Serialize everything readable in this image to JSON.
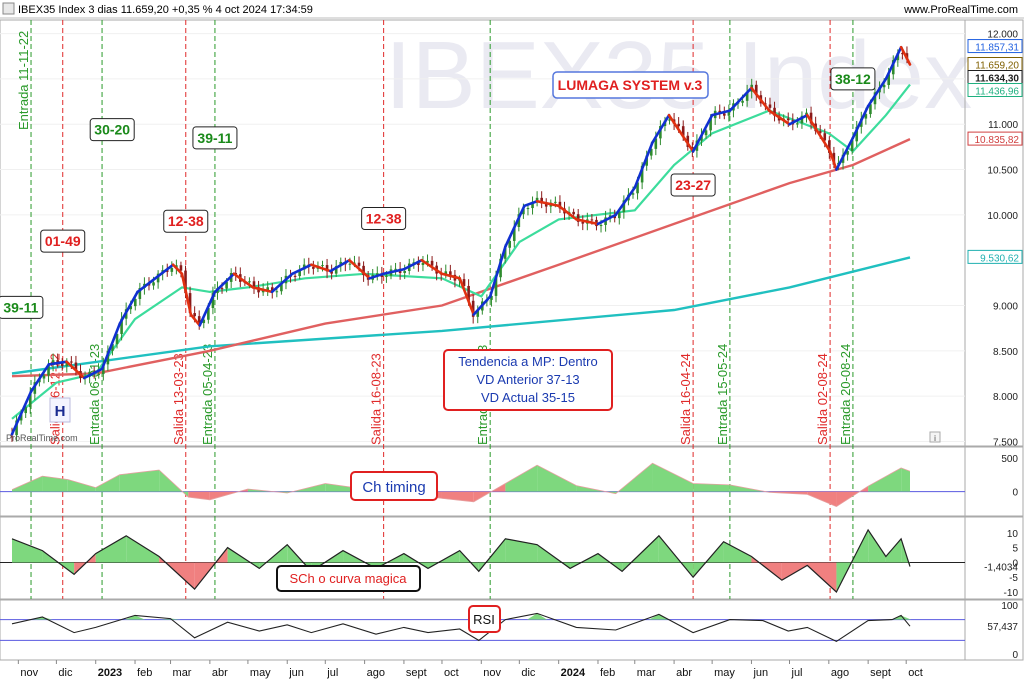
{
  "header": {
    "title": "IBEX35 Index 3 dias 11.659,20 +0,35 % 4 oct 2024 17:34:59",
    "site": "www.ProRealTime.com",
    "watermark": "IBEX35 Index",
    "credit": "ProRealTime.com"
  },
  "colors": {
    "up_candle": "#2e8b2e",
    "down_candle": "#8b1a1a",
    "trend_up": "#1030d0",
    "trend_down": "#e03010",
    "fast_ma": "#3cdc9c",
    "slow_ma": "#e06060",
    "long_ma": "#20c0c0",
    "entry_line": "#2a9a2a",
    "exit_line": "#e02a2a",
    "hist_pos": "#7ed87e",
    "hist_neg": "#f08080",
    "ref_line": "#5a5ae0"
  },
  "labels": {
    "system_title": "LUMAGA SYSTEM v.3",
    "info_box": [
      "Tendencia a MP: Dentro",
      "VD Anterior 37-13",
      "VD Actual 35-15"
    ],
    "panel1_label": "Ch timing",
    "panel2_label": "SCh o curva magica",
    "panel3_label": "RSI",
    "h_marker": "H"
  },
  "chart_data": {
    "type": "candlestick",
    "x_axis": {
      "labels": [
        "nov",
        "dic",
        "2023",
        "feb",
        "mar",
        "abr",
        "may",
        "jun",
        "jul",
        "ago",
        "sept",
        "oct",
        "nov",
        "dic",
        "2024",
        "feb",
        "mar",
        "abr",
        "may",
        "jun",
        "jul",
        "ago",
        "sept",
        "oct"
      ],
      "range": [
        "2022-10-27",
        "2024-10-04"
      ]
    },
    "price_axis": {
      "ylim": [
        7450,
        12150
      ],
      "ticks": [
        "12.000",
        "11.500",
        "11.000",
        "10.500",
        "10.000",
        "9.000",
        "8.500",
        "8.000",
        "7.500"
      ],
      "tick_values": [
        12000,
        11500,
        11000,
        10500,
        10000,
        9000,
        8500,
        8000,
        7500
      ],
      "price_tags": [
        {
          "text": "11.857,31",
          "value": 11857,
          "color": "#2060e0"
        },
        {
          "text": "11.659,20",
          "value": 11659,
          "color": "#806000"
        },
        {
          "text": "11.634,30",
          "value": 11634,
          "color": "#202020"
        },
        {
          "text": "11.436,96",
          "value": 11437,
          "color": "#20b080"
        },
        {
          "text": "10.835,82",
          "value": 10836,
          "color": "#d04040"
        },
        {
          "text": "9.530,62",
          "value": 9531,
          "color": "#20b0b0"
        }
      ]
    },
    "price_path": [
      [
        "2022-10-27",
        7580
      ],
      [
        "2022-11-11",
        8050
      ],
      [
        "2022-11-25",
        8350
      ],
      [
        "2022-12-09",
        8380
      ],
      [
        "2022-12-23",
        8200
      ],
      [
        "2023-01-06",
        8300
      ],
      [
        "2023-01-20",
        8800
      ],
      [
        "2023-02-03",
        9150
      ],
      [
        "2023-02-17",
        9300
      ],
      [
        "2023-03-03",
        9450
      ],
      [
        "2023-03-10",
        9350
      ],
      [
        "2023-03-17",
        8900
      ],
      [
        "2023-03-24",
        8780
      ],
      [
        "2023-04-05",
        9150
      ],
      [
        "2023-04-20",
        9350
      ],
      [
        "2023-05-05",
        9200
      ],
      [
        "2023-05-20",
        9150
      ],
      [
        "2023-06-05",
        9350
      ],
      [
        "2023-06-20",
        9450
      ],
      [
        "2023-07-05",
        9380
      ],
      [
        "2023-07-20",
        9500
      ],
      [
        "2023-08-05",
        9300
      ],
      [
        "2023-08-16",
        9350
      ],
      [
        "2023-09-01",
        9400
      ],
      [
        "2023-09-15",
        9500
      ],
      [
        "2023-10-01",
        9350
      ],
      [
        "2023-10-15",
        9300
      ],
      [
        "2023-10-26",
        8900
      ],
      [
        "2023-11-08",
        9100
      ],
      [
        "2023-11-20",
        9650
      ],
      [
        "2023-12-05",
        10100
      ],
      [
        "2023-12-15",
        10150
      ],
      [
        "2024-01-01",
        10100
      ],
      [
        "2024-01-15",
        9950
      ],
      [
        "2024-02-01",
        9900
      ],
      [
        "2024-02-15",
        10000
      ],
      [
        "2024-03-01",
        10300
      ],
      [
        "2024-03-15",
        10800
      ],
      [
        "2024-03-28",
        11100
      ],
      [
        "2024-04-16",
        10700
      ],
      [
        "2024-05-01",
        11100
      ],
      [
        "2024-05-15",
        11150
      ],
      [
        "2024-06-01",
        11400
      ],
      [
        "2024-06-15",
        11150
      ],
      [
        "2024-07-01",
        11000
      ],
      [
        "2024-07-15",
        11100
      ],
      [
        "2024-08-02",
        10700
      ],
      [
        "2024-08-07",
        10500
      ],
      [
        "2024-08-20",
        10850
      ],
      [
        "2024-09-01",
        11200
      ],
      [
        "2024-09-15",
        11500
      ],
      [
        "2024-09-27",
        11850
      ],
      [
        "2024-10-04",
        11659
      ]
    ],
    "ma_fast": [
      [
        "2022-10-27",
        7750
      ],
      [
        "2022-12-01",
        8150
      ],
      [
        "2023-01-01",
        8250
      ],
      [
        "2023-02-01",
        8850
      ],
      [
        "2023-03-10",
        9200
      ],
      [
        "2023-04-01",
        9150
      ],
      [
        "2023-05-01",
        9200
      ],
      [
        "2023-06-15",
        9300
      ],
      [
        "2023-08-01",
        9350
      ],
      [
        "2023-10-01",
        9300
      ],
      [
        "2023-11-01",
        9100
      ],
      [
        "2023-12-01",
        9700
      ],
      [
        "2024-01-01",
        9950
      ],
      [
        "2024-03-01",
        10050
      ],
      [
        "2024-04-01",
        10550
      ],
      [
        "2024-05-01",
        10900
      ],
      [
        "2024-06-15",
        11150
      ],
      [
        "2024-08-01",
        10900
      ],
      [
        "2024-08-20",
        10700
      ],
      [
        "2024-09-15",
        11100
      ],
      [
        "2024-10-04",
        11437
      ]
    ],
    "ma_slow": [
      [
        "2022-10-27",
        8220
      ],
      [
        "2023-01-01",
        8250
      ],
      [
        "2023-04-01",
        8500
      ],
      [
        "2023-07-01",
        8800
      ],
      [
        "2023-10-01",
        9000
      ],
      [
        "2024-01-01",
        9450
      ],
      [
        "2024-04-01",
        9900
      ],
      [
        "2024-07-01",
        10350
      ],
      [
        "2024-08-20",
        10550
      ],
      [
        "2024-10-04",
        10836
      ]
    ],
    "ma_long": [
      [
        "2022-10-27",
        8250
      ],
      [
        "2023-04-01",
        8550
      ],
      [
        "2023-10-01",
        8720
      ],
      [
        "2024-04-01",
        8950
      ],
      [
        "2024-07-01",
        9200
      ],
      [
        "2024-10-04",
        9531
      ]
    ],
    "signals": [
      {
        "kind": "entry",
        "label": "Entrada 11-11-22",
        "date": "2022-11-11"
      },
      {
        "kind": "exit",
        "label": "Salida 06-12-22",
        "date": "2022-12-06"
      },
      {
        "kind": "entry",
        "label": "Entrada 06-01-23",
        "date": "2023-01-06"
      },
      {
        "kind": "exit",
        "label": "Salida 13-03-23",
        "date": "2023-03-13"
      },
      {
        "kind": "entry",
        "label": "Entrada 05-04-23",
        "date": "2023-04-05"
      },
      {
        "kind": "exit",
        "label": "Salida 16-08-23",
        "date": "2023-08-16"
      },
      {
        "kind": "entry",
        "label": "Entrada 08-11-23",
        "date": "2023-11-08"
      },
      {
        "kind": "exit",
        "label": "Salida 16-04-24",
        "date": "2024-04-16"
      },
      {
        "kind": "entry",
        "label": "Entrada 15-05-24",
        "date": "2024-05-15"
      },
      {
        "kind": "exit",
        "label": "Salida 02-08-24",
        "date": "2024-08-02"
      },
      {
        "kind": "entry",
        "label": "Entrada 20-08-24",
        "date": "2024-08-20"
      }
    ],
    "score_labels": [
      {
        "text": "39-11",
        "kind": "entry",
        "date": "2022-11-03",
        "value": 8980
      },
      {
        "text": "01-49",
        "kind": "exit",
        "date": "2022-12-06",
        "value": 9710
      },
      {
        "text": "30-20",
        "kind": "entry",
        "date": "2023-01-14",
        "value": 10940
      },
      {
        "text": "12-38",
        "kind": "exit",
        "date": "2023-03-13",
        "value": 9930
      },
      {
        "text": "39-11",
        "kind": "entry",
        "date": "2023-04-05",
        "value": 10850
      },
      {
        "text": "12-38",
        "kind": "exit",
        "date": "2023-08-16",
        "value": 9960
      },
      {
        "text": "23-27",
        "kind": "exit",
        "date": "2024-04-16",
        "value": 10330
      },
      {
        "text": "38-12",
        "kind": "entry",
        "date": "2024-08-20",
        "value": 11500
      }
    ],
    "panels": [
      {
        "name": "Ch timing",
        "ylim": [
          -300,
          600
        ],
        "ticks": [
          "500",
          "0"
        ],
        "tick_values": [
          500,
          0
        ],
        "values": [
          [
            "2022-10-27",
            30
          ],
          [
            "2022-11-20",
            230
          ],
          [
            "2022-12-10",
            180
          ],
          [
            "2023-01-01",
            60
          ],
          [
            "2023-01-20",
            250
          ],
          [
            "2023-02-20",
            320
          ],
          [
            "2023-03-15",
            -80
          ],
          [
            "2023-04-01",
            -120
          ],
          [
            "2023-05-01",
            40
          ],
          [
            "2023-06-01",
            -20
          ],
          [
            "2023-07-01",
            120
          ],
          [
            "2023-08-01",
            40
          ],
          [
            "2023-09-01",
            -20
          ],
          [
            "2023-10-01",
            -100
          ],
          [
            "2023-10-26",
            -150
          ],
          [
            "2023-11-20",
            120
          ],
          [
            "2023-12-15",
            390
          ],
          [
            "2024-01-15",
            90
          ],
          [
            "2024-02-15",
            -30
          ],
          [
            "2024-03-15",
            420
          ],
          [
            "2024-04-16",
            120
          ],
          [
            "2024-05-15",
            100
          ],
          [
            "2024-06-15",
            -10
          ],
          [
            "2024-07-15",
            -40
          ],
          [
            "2024-08-07",
            -220
          ],
          [
            "2024-09-01",
            80
          ],
          [
            "2024-09-27",
            350
          ],
          [
            "2024-10-04",
            300
          ]
        ]
      },
      {
        "name": "SCh o curva magica",
        "ylim": [
          -11,
          14
        ],
        "ticks": [
          "10",
          "5",
          "0",
          "-1,4034",
          "-5",
          "-10"
        ],
        "tick_values": [
          10,
          5,
          0,
          -1.4034,
          -5,
          -10
        ],
        "values": [
          [
            "2022-10-27",
            8
          ],
          [
            "2022-11-20",
            4
          ],
          [
            "2022-12-15",
            -4
          ],
          [
            "2023-01-01",
            3
          ],
          [
            "2023-01-25",
            9
          ],
          [
            "2023-02-20",
            2
          ],
          [
            "2023-03-20",
            -9
          ],
          [
            "2023-04-15",
            5
          ],
          [
            "2023-05-10",
            -2
          ],
          [
            "2023-06-01",
            6
          ],
          [
            "2023-06-20",
            -3
          ],
          [
            "2023-07-15",
            4
          ],
          [
            "2023-08-10",
            -2
          ],
          [
            "2023-09-01",
            3
          ],
          [
            "2023-09-20",
            -2
          ],
          [
            "2023-10-15",
            4
          ],
          [
            "2023-10-30",
            -3
          ],
          [
            "2023-11-20",
            8
          ],
          [
            "2023-12-15",
            6
          ],
          [
            "2024-01-10",
            -2
          ],
          [
            "2024-02-01",
            3
          ],
          [
            "2024-02-20",
            -3
          ],
          [
            "2024-03-20",
            9
          ],
          [
            "2024-04-16",
            -5
          ],
          [
            "2024-05-10",
            7
          ],
          [
            "2024-06-01",
            2
          ],
          [
            "2024-06-25",
            -6
          ],
          [
            "2024-07-15",
            -1
          ],
          [
            "2024-08-07",
            -10
          ],
          [
            "2024-09-01",
            11
          ],
          [
            "2024-09-15",
            2
          ],
          [
            "2024-09-27",
            8
          ],
          [
            "2024-10-04",
            -1.4
          ]
        ]
      },
      {
        "name": "RSI",
        "ylim": [
          0,
          100
        ],
        "ticks": [
          "100",
          "57,437",
          "0"
        ],
        "tick_values": [
          100,
          57.437,
          0
        ],
        "levels": [
          70,
          30
        ],
        "values": [
          [
            "2022-10-27",
            62
          ],
          [
            "2022-11-20",
            75
          ],
          [
            "2022-12-15",
            45
          ],
          [
            "2023-01-01",
            55
          ],
          [
            "2023-02-01",
            78
          ],
          [
            "2023-03-01",
            72
          ],
          [
            "2023-03-20",
            35
          ],
          [
            "2023-04-15",
            65
          ],
          [
            "2023-05-10",
            48
          ],
          [
            "2023-06-01",
            60
          ],
          [
            "2023-06-20",
            45
          ],
          [
            "2023-07-15",
            62
          ],
          [
            "2023-08-10",
            42
          ],
          [
            "2023-09-01",
            55
          ],
          [
            "2023-09-20",
            45
          ],
          [
            "2023-10-15",
            52
          ],
          [
            "2023-10-30",
            30
          ],
          [
            "2023-11-20",
            70
          ],
          [
            "2023-12-15",
            82
          ],
          [
            "2024-01-15",
            55
          ],
          [
            "2024-02-15",
            50
          ],
          [
            "2024-03-20",
            80
          ],
          [
            "2024-04-16",
            45
          ],
          [
            "2024-05-15",
            70
          ],
          [
            "2024-06-10",
            68
          ],
          [
            "2024-06-30",
            48
          ],
          [
            "2024-07-15",
            55
          ],
          [
            "2024-08-07",
            28
          ],
          [
            "2024-09-01",
            68
          ],
          [
            "2024-09-20",
            70
          ],
          [
            "2024-09-27",
            78
          ],
          [
            "2024-10-04",
            57.4
          ]
        ]
      }
    ]
  }
}
